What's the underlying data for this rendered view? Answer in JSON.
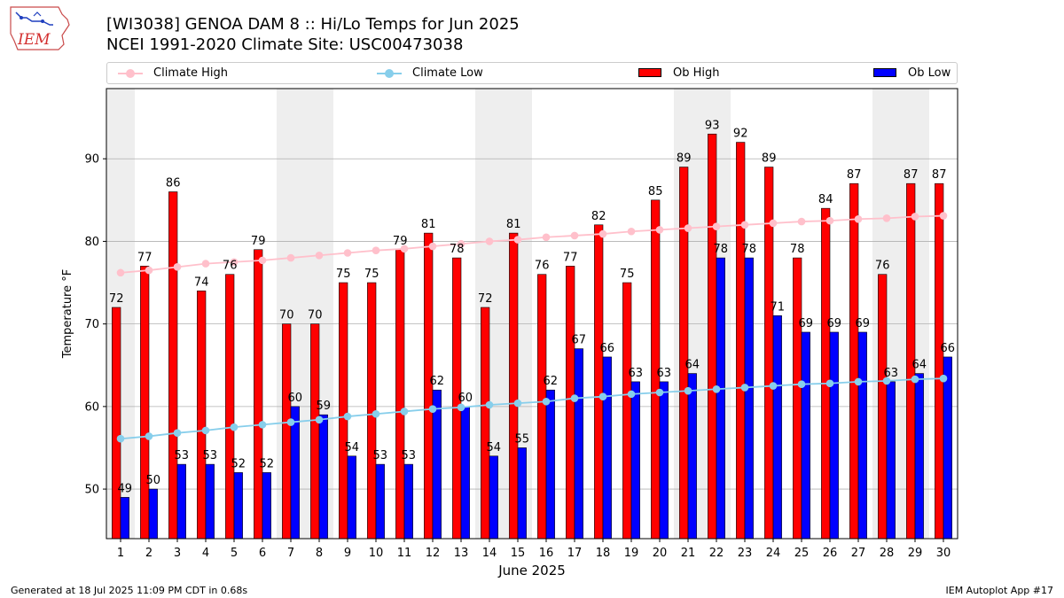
{
  "header": {
    "title_line1": "[WI3038] GENOA DAM 8 :: Hi/Lo Temps for Jun 2025",
    "title_line2": "NCEI 1991-2020 Climate Site: USC00473038"
  },
  "logo": {
    "text": "IEM"
  },
  "footer": {
    "left": "Generated at 18 Jul 2025 11:09 PM CDT in 0.68s",
    "right": "IEM Autoplot App #17"
  },
  "chart_data": {
    "type": "bar",
    "xlabel": "June 2025",
    "ylabel": "Temperature °F",
    "ylim": [
      44,
      98.5
    ],
    "yticks": [
      50,
      60,
      70,
      80,
      90
    ],
    "grid": "horizontal",
    "legend_placement": "top",
    "weekend_shading_days": [
      1,
      7,
      8,
      14,
      15,
      21,
      22,
      28,
      29
    ],
    "colors": {
      "ob_high": "#ff0000",
      "ob_low": "#0000ff",
      "climate_high": "#ffc0cb",
      "climate_low": "#87ceeb",
      "weekend_shade": "#eeeeee",
      "grid": "#b0b0b0"
    },
    "categories": [
      "1",
      "2",
      "3",
      "4",
      "5",
      "6",
      "7",
      "8",
      "9",
      "10",
      "11",
      "12",
      "13",
      "14",
      "15",
      "16",
      "17",
      "18",
      "19",
      "20",
      "21",
      "22",
      "23",
      "24",
      "25",
      "26",
      "27",
      "28",
      "29",
      "30"
    ],
    "series": [
      {
        "name": "Ob High",
        "kind": "bar",
        "values": [
          72,
          77,
          86,
          74,
          76,
          79,
          70,
          70,
          75,
          75,
          79,
          81,
          78,
          72,
          81,
          76,
          77,
          82,
          75,
          85,
          89,
          93,
          92,
          89,
          78,
          84,
          87,
          76,
          87,
          87
        ]
      },
      {
        "name": "Ob Low",
        "kind": "bar",
        "values": [
          49,
          50,
          53,
          53,
          52,
          52,
          60,
          59,
          54,
          53,
          53,
          62,
          60,
          54,
          55,
          62,
          67,
          66,
          63,
          63,
          64,
          78,
          78,
          71,
          69,
          69,
          69,
          63,
          64,
          66
        ]
      },
      {
        "name": "Climate High",
        "kind": "line",
        "values": [
          76.2,
          76.5,
          76.9,
          77.3,
          77.5,
          77.7,
          78.0,
          78.3,
          78.6,
          78.9,
          79.1,
          79.4,
          79.7,
          80.0,
          80.2,
          80.5,
          80.7,
          80.9,
          81.2,
          81.4,
          81.6,
          81.8,
          82.0,
          82.2,
          82.4,
          82.5,
          82.7,
          82.8,
          83.0,
          83.1
        ]
      },
      {
        "name": "Climate Low",
        "kind": "line",
        "values": [
          56.1,
          56.4,
          56.8,
          57.1,
          57.5,
          57.8,
          58.1,
          58.4,
          58.8,
          59.1,
          59.4,
          59.7,
          59.9,
          60.2,
          60.4,
          60.6,
          61.0,
          61.2,
          61.5,
          61.7,
          61.9,
          62.1,
          62.3,
          62.5,
          62.7,
          62.8,
          63.0,
          63.1,
          63.3,
          63.4
        ]
      }
    ]
  }
}
